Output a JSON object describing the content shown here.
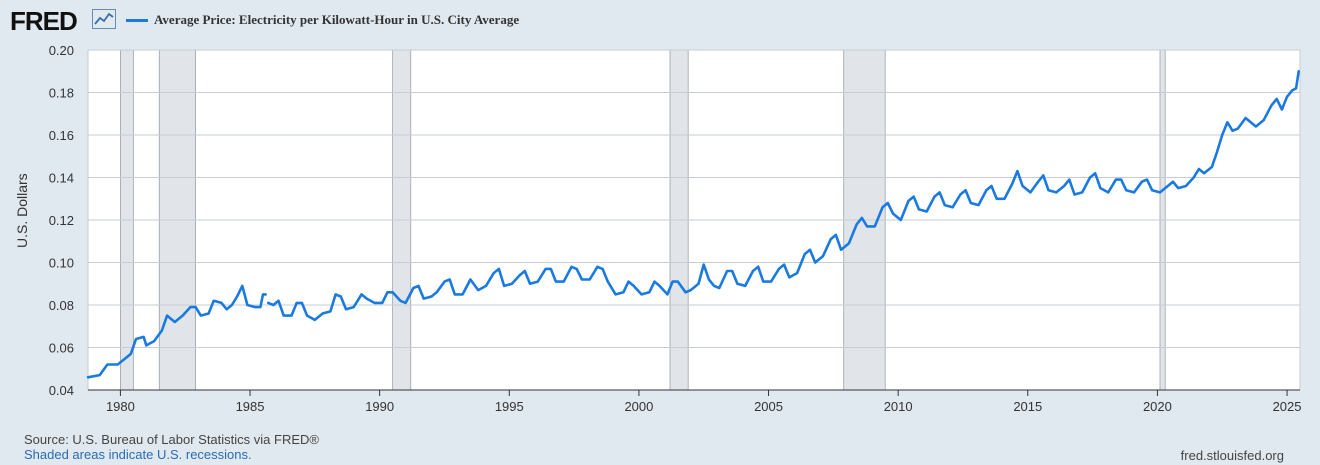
{
  "header": {
    "logo": "FRED",
    "logo_icon": "line-chart-icon",
    "series_label": "Average Price: Electricity per Kilowatt-Hour in U.S. City Average"
  },
  "footer": {
    "source": "Source: U.S. Bureau of Labor Statistics via FRED®",
    "recession_note": "Shaded areas indicate U.S. recessions.",
    "url": "fred.stlouisfed.org"
  },
  "colors": {
    "line": "#1a7ae0",
    "recession": "#e1e5e9",
    "plot_bg": "#ffffff",
    "page_bg": "#e1e9f0"
  },
  "chart_data": {
    "type": "line",
    "title": "Average Price: Electricity per Kilowatt-Hour in U.S. City Average",
    "xlabel": "",
    "ylabel": "U.S. Dollars",
    "xlim": [
      1978.75,
      2025.5
    ],
    "ylim": [
      0.04,
      0.2
    ],
    "x_ticks": [
      1980,
      1985,
      1990,
      1995,
      2000,
      2005,
      2010,
      2015,
      2020,
      2025
    ],
    "x_tick_labels": [
      "1980",
      "1985",
      "1990",
      "1995",
      "2000",
      "2005",
      "2010",
      "2015",
      "2020",
      "2025"
    ],
    "y_ticks": [
      0.04,
      0.06,
      0.08,
      0.1,
      0.12,
      0.14,
      0.16,
      0.18,
      0.2
    ],
    "y_tick_labels": [
      "0.04",
      "0.06",
      "0.08",
      "0.10",
      "0.12",
      "0.14",
      "0.16",
      "0.18",
      "0.20"
    ],
    "grid": true,
    "recessions": [
      [
        1980.0,
        1980.5
      ],
      [
        1981.5,
        1982.9
      ],
      [
        1990.5,
        1991.2
      ],
      [
        2001.2,
        2001.9
      ],
      [
        2007.9,
        2009.5
      ],
      [
        2020.1,
        2020.3
      ]
    ],
    "series": [
      {
        "name": "Average Price: Electricity per Kilowatt-Hour in U.S. City Average",
        "segments": [
          [
            [
              1978.75,
              0.046
            ],
            [
              1979.2,
              0.047
            ],
            [
              1979.5,
              0.052
            ],
            [
              1979.9,
              0.052
            ],
            [
              1980.1,
              0.054
            ],
            [
              1980.4,
              0.057
            ],
            [
              1980.6,
              0.064
            ],
            [
              1980.9,
              0.065
            ],
            [
              1981.0,
              0.061
            ],
            [
              1981.3,
              0.063
            ],
            [
              1981.6,
              0.068
            ],
            [
              1981.8,
              0.075
            ],
            [
              1982.1,
              0.072
            ],
            [
              1982.4,
              0.075
            ],
            [
              1982.7,
              0.079
            ],
            [
              1982.9,
              0.079
            ],
            [
              1983.1,
              0.075
            ],
            [
              1983.4,
              0.076
            ],
            [
              1983.6,
              0.082
            ],
            [
              1983.9,
              0.081
            ],
            [
              1984.1,
              0.078
            ],
            [
              1984.3,
              0.08
            ],
            [
              1984.5,
              0.084
            ],
            [
              1984.7,
              0.089
            ],
            [
              1984.9,
              0.08
            ],
            [
              1985.2,
              0.079
            ],
            [
              1985.4,
              0.079
            ],
            [
              1985.5,
              0.085
            ],
            [
              1985.6,
              0.085
            ]
          ],
          [
            [
              1985.7,
              0.081
            ],
            [
              1985.9,
              0.08
            ],
            [
              1986.1,
              0.082
            ],
            [
              1986.3,
              0.075
            ],
            [
              1986.6,
              0.075
            ],
            [
              1986.8,
              0.081
            ],
            [
              1987.0,
              0.081
            ],
            [
              1987.2,
              0.075
            ],
            [
              1987.5,
              0.073
            ],
            [
              1987.8,
              0.076
            ],
            [
              1988.1,
              0.077
            ],
            [
              1988.3,
              0.085
            ],
            [
              1988.5,
              0.084
            ],
            [
              1988.7,
              0.078
            ],
            [
              1989.0,
              0.079
            ],
            [
              1989.3,
              0.085
            ],
            [
              1989.5,
              0.083
            ],
            [
              1989.8,
              0.081
            ],
            [
              1990.1,
              0.081
            ],
            [
              1990.3,
              0.086
            ],
            [
              1990.5,
              0.086
            ],
            [
              1990.8,
              0.082
            ],
            [
              1991.0,
              0.081
            ],
            [
              1991.3,
              0.088
            ],
            [
              1991.5,
              0.089
            ],
            [
              1991.7,
              0.083
            ],
            [
              1992.0,
              0.084
            ],
            [
              1992.2,
              0.086
            ],
            [
              1992.5,
              0.091
            ],
            [
              1992.7,
              0.092
            ],
            [
              1992.9,
              0.085
            ],
            [
              1993.2,
              0.085
            ],
            [
              1993.5,
              0.092
            ],
            [
              1993.8,
              0.087
            ],
            [
              1994.1,
              0.089
            ],
            [
              1994.4,
              0.095
            ],
            [
              1994.6,
              0.097
            ],
            [
              1994.8,
              0.089
            ],
            [
              1995.1,
              0.09
            ],
            [
              1995.4,
              0.094
            ],
            [
              1995.6,
              0.096
            ],
            [
              1995.8,
              0.09
            ],
            [
              1996.1,
              0.091
            ],
            [
              1996.4,
              0.097
            ],
            [
              1996.6,
              0.097
            ],
            [
              1996.8,
              0.091
            ],
            [
              1997.1,
              0.091
            ],
            [
              1997.4,
              0.098
            ],
            [
              1997.6,
              0.097
            ],
            [
              1997.8,
              0.092
            ],
            [
              1998.1,
              0.092
            ],
            [
              1998.4,
              0.098
            ],
            [
              1998.6,
              0.097
            ],
            [
              1998.8,
              0.091
            ],
            [
              1999.1,
              0.085
            ],
            [
              1999.4,
              0.086
            ],
            [
              1999.6,
              0.091
            ],
            [
              1999.8,
              0.089
            ],
            [
              2000.1,
              0.085
            ],
            [
              2000.4,
              0.086
            ],
            [
              2000.6,
              0.091
            ],
            [
              2000.8,
              0.089
            ],
            [
              2001.1,
              0.085
            ],
            [
              2001.3,
              0.091
            ],
            [
              2001.5,
              0.091
            ],
            [
              2001.8,
              0.086
            ],
            [
              2002.0,
              0.087
            ],
            [
              2002.3,
              0.09
            ],
            [
              2002.5,
              0.099
            ],
            [
              2002.7,
              0.092
            ],
            [
              2002.9,
              0.089
            ],
            [
              2003.1,
              0.088
            ],
            [
              2003.4,
              0.096
            ],
            [
              2003.6,
              0.096
            ],
            [
              2003.8,
              0.09
            ],
            [
              2004.1,
              0.089
            ],
            [
              2004.4,
              0.096
            ],
            [
              2004.6,
              0.098
            ],
            [
              2004.8,
              0.091
            ],
            [
              2005.1,
              0.091
            ],
            [
              2005.4,
              0.097
            ],
            [
              2005.6,
              0.099
            ],
            [
              2005.8,
              0.093
            ],
            [
              2006.1,
              0.095
            ],
            [
              2006.4,
              0.104
            ],
            [
              2006.6,
              0.106
            ],
            [
              2006.8,
              0.1
            ],
            [
              2007.1,
              0.103
            ],
            [
              2007.4,
              0.111
            ],
            [
              2007.6,
              0.113
            ],
            [
              2007.8,
              0.106
            ],
            [
              2008.1,
              0.109
            ],
            [
              2008.4,
              0.118
            ],
            [
              2008.6,
              0.121
            ],
            [
              2008.8,
              0.117
            ],
            [
              2009.1,
              0.117
            ],
            [
              2009.4,
              0.126
            ],
            [
              2009.6,
              0.128
            ],
            [
              2009.8,
              0.123
            ],
            [
              2010.1,
              0.12
            ],
            [
              2010.4,
              0.129
            ],
            [
              2010.6,
              0.131
            ],
            [
              2010.8,
              0.125
            ],
            [
              2011.1,
              0.124
            ],
            [
              2011.4,
              0.131
            ],
            [
              2011.6,
              0.133
            ],
            [
              2011.8,
              0.127
            ],
            [
              2012.1,
              0.126
            ],
            [
              2012.4,
              0.132
            ],
            [
              2012.6,
              0.134
            ],
            [
              2012.8,
              0.128
            ],
            [
              2013.1,
              0.127
            ],
            [
              2013.4,
              0.134
            ],
            [
              2013.6,
              0.136
            ],
            [
              2013.8,
              0.13
            ],
            [
              2014.1,
              0.13
            ],
            [
              2014.4,
              0.137
            ],
            [
              2014.6,
              0.143
            ],
            [
              2014.8,
              0.136
            ],
            [
              2015.1,
              0.133
            ],
            [
              2015.4,
              0.138
            ],
            [
              2015.6,
              0.141
            ],
            [
              2015.8,
              0.134
            ],
            [
              2016.1,
              0.133
            ],
            [
              2016.4,
              0.136
            ],
            [
              2016.6,
              0.139
            ],
            [
              2016.8,
              0.132
            ],
            [
              2017.1,
              0.133
            ],
            [
              2017.4,
              0.14
            ],
            [
              2017.6,
              0.142
            ],
            [
              2017.8,
              0.135
            ],
            [
              2018.1,
              0.133
            ],
            [
              2018.4,
              0.139
            ],
            [
              2018.6,
              0.139
            ],
            [
              2018.8,
              0.134
            ],
            [
              2019.1,
              0.133
            ],
            [
              2019.4,
              0.138
            ],
            [
              2019.6,
              0.139
            ],
            [
              2019.8,
              0.134
            ],
            [
              2020.1,
              0.133
            ],
            [
              2020.4,
              0.136
            ],
            [
              2020.6,
              0.138
            ],
            [
              2020.8,
              0.135
            ],
            [
              2021.1,
              0.136
            ],
            [
              2021.4,
              0.14
            ],
            [
              2021.6,
              0.144
            ],
            [
              2021.8,
              0.142
            ],
            [
              2022.1,
              0.145
            ],
            [
              2022.3,
              0.152
            ],
            [
              2022.5,
              0.16
            ],
            [
              2022.7,
              0.166
            ],
            [
              2022.9,
              0.162
            ],
            [
              2023.1,
              0.163
            ],
            [
              2023.4,
              0.168
            ],
            [
              2023.6,
              0.166
            ],
            [
              2023.8,
              0.164
            ],
            [
              2024.1,
              0.167
            ],
            [
              2024.4,
              0.174
            ],
            [
              2024.6,
              0.177
            ],
            [
              2024.8,
              0.172
            ],
            [
              2025.0,
              0.178
            ],
            [
              2025.2,
              0.181
            ],
            [
              2025.35,
              0.182
            ],
            [
              2025.45,
              0.19
            ]
          ]
        ]
      }
    ]
  }
}
